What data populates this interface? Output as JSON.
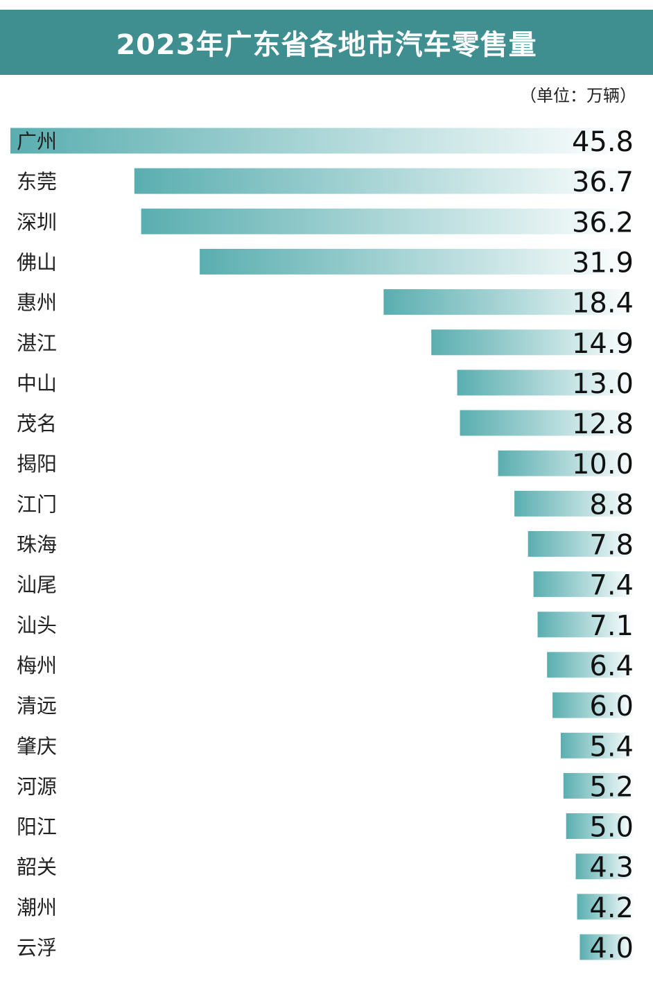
{
  "title": "2023年广东省各地市汽车零售量",
  "unit": "（单位：万辆）",
  "colors": {
    "header_bg": "#3f8f91",
    "bar_dark": "#5aaeb0",
    "bar_light": "#ffffff"
  },
  "chart_data": {
    "type": "bar",
    "orientation": "horizontal",
    "title": "2023年广东省各地市汽车零售量",
    "unit": "万辆",
    "grid": false,
    "categories": [
      "广州",
      "东莞",
      "深圳",
      "佛山",
      "惠州",
      "湛江",
      "中山",
      "茂名",
      "揭阳",
      "江门",
      "珠海",
      "汕尾",
      "汕头",
      "梅州",
      "清远",
      "肇庆",
      "河源",
      "阳江",
      "韶关",
      "潮州",
      "云浮"
    ],
    "values": [
      45.8,
      36.7,
      36.2,
      31.9,
      18.4,
      14.9,
      13.0,
      12.8,
      10.0,
      8.8,
      7.8,
      7.4,
      7.1,
      6.4,
      6.0,
      5.4,
      5.2,
      5.0,
      4.3,
      4.2,
      4.0
    ],
    "value_labels": [
      "45.8",
      "36.7",
      "36.2",
      "31.9",
      "18.4",
      "14.9",
      "13.0",
      "12.8",
      "10.0",
      "8.8",
      "7.8",
      "7.4",
      "7.1",
      "6.4",
      "6.0",
      "5.4",
      "5.2",
      "5.0",
      "4.3",
      "4.2",
      "4.0"
    ]
  }
}
